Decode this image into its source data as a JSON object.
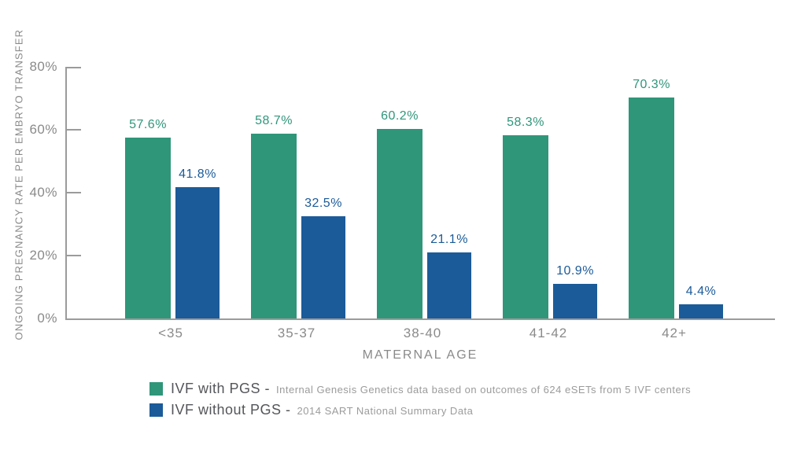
{
  "colors": {
    "green": "#2f9679",
    "blue": "#1b5b99",
    "axis": "#9b9b9b",
    "axis_text": "#8a8a8a",
    "legend_label": "#55565a",
    "legend_detail": "#9b9b9b",
    "background": "#ffffff"
  },
  "chart_data": {
    "type": "bar",
    "title": "",
    "categories": [
      "<35",
      "35-37",
      "38-40",
      "41-42",
      "42+"
    ],
    "series": [
      {
        "name": "IVF with PGS",
        "color": "#2f9679",
        "values": [
          57.6,
          58.7,
          60.2,
          58.3,
          70.3
        ],
        "labels": [
          "57.6%",
          "58.7%",
          "60.2%",
          "58.3%",
          "70.3%"
        ]
      },
      {
        "name": "IVF without PGS",
        "color": "#1b5b99",
        "values": [
          41.8,
          32.5,
          21.1,
          10.9,
          4.4
        ],
        "labels": [
          "41.8%",
          "32.5%",
          "21.1%",
          "10.9%",
          "4.4%"
        ]
      }
    ],
    "xlabel": "MATERNAL AGE",
    "ylabel": "ONGOING PREGNANCY RATE PER EMBRYO TRANSFER",
    "ylim": [
      0,
      80
    ],
    "yticks": [
      {
        "label": "0%",
        "value": 0
      },
      {
        "label": "20%",
        "value": 20
      },
      {
        "label": "40%",
        "value": 40
      },
      {
        "label": "60%",
        "value": 60
      },
      {
        "label": "80%",
        "value": 80
      }
    ],
    "grid": false,
    "legend_position": "bottom"
  },
  "legend": {
    "items": [
      {
        "swatch": "green",
        "label": "IVF with PGS -",
        "detail": "Internal Genesis Genetics data based on outcomes of 624 eSETs from 5 IVF centers"
      },
      {
        "swatch": "blue",
        "label": "IVF without PGS -",
        "detail": "2014 SART National Summary Data"
      }
    ]
  }
}
